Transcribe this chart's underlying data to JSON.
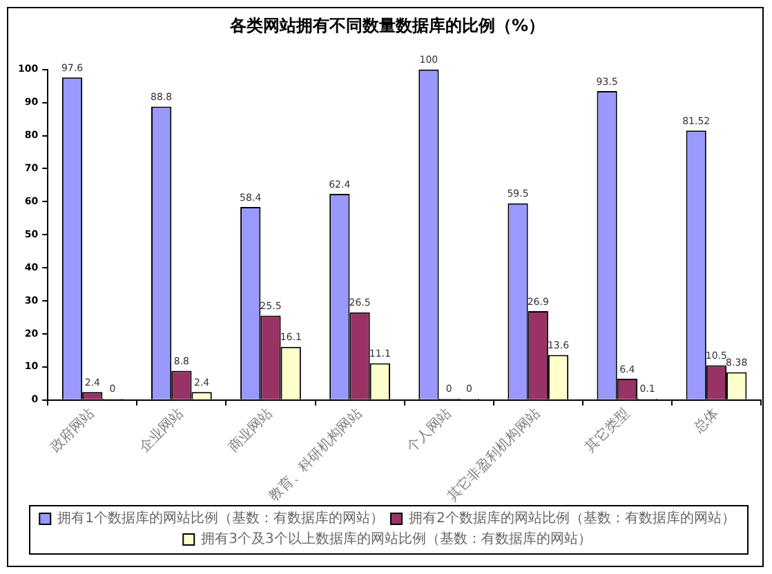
{
  "chart_data": {
    "type": "bar",
    "title": "各类网站拥有不同数量数据库的比例（%）",
    "categories": [
      "政府网站",
      "企业网站",
      "商业网站",
      "教育、科研机构网站",
      "个人网站",
      "其它非盈利机构网站",
      "其它类型",
      "总体"
    ],
    "series": [
      {
        "name": "拥有1个数据库的网站比例（基数：有数据库的网站）",
        "color": "#9999ff",
        "values": [
          97.6,
          88.8,
          58.4,
          62.4,
          100,
          59.5,
          93.5,
          81.52
        ]
      },
      {
        "name": "拥有2个数据库的网站比例（基数：有数据库的网站）",
        "color": "#993366",
        "values": [
          2.4,
          8.8,
          25.5,
          26.5,
          0,
          26.9,
          6.4,
          10.5
        ]
      },
      {
        "name": "拥有3个及3个以上数据库的网站比例（基数：有数据库的网站）",
        "color": "#ffffcc",
        "values": [
          0,
          2.4,
          16.1,
          11.1,
          0,
          13.6,
          0.1,
          8.38
        ]
      }
    ],
    "ylim": [
      0,
      100
    ],
    "yticks": [
      0,
      10,
      20,
      30,
      40,
      50,
      60,
      70,
      80,
      90,
      100
    ],
    "grid": false,
    "legend": "bottom",
    "data_labels": true
  }
}
